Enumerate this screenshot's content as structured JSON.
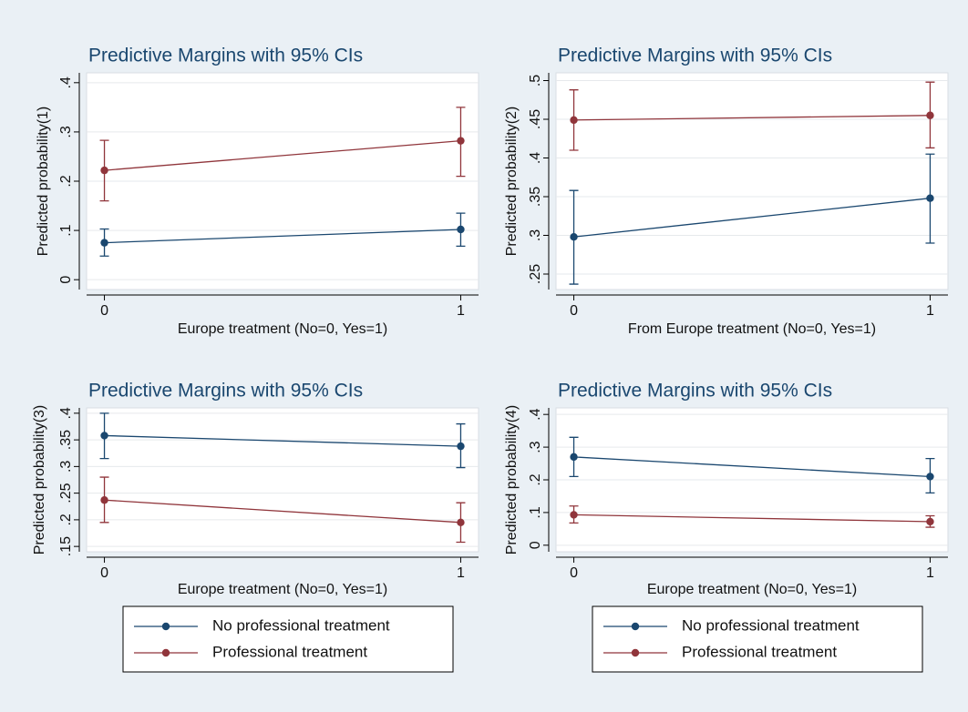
{
  "chart_data": [
    {
      "type": "line",
      "title": "Predictive Margins with 95% CIs",
      "y_label": "Predicted probability(1)",
      "x_label": "Europe treatment (No=0, Yes=1)",
      "x": [
        0,
        1
      ],
      "xlim": [
        -0.05,
        1.05
      ],
      "xticks": [
        0,
        1
      ],
      "ylim": [
        -0.02,
        0.42
      ],
      "yticks": [
        0,
        {
          "value": 0.1,
          "label": ".1"
        },
        {
          "value": 0.2,
          "label": ".2"
        },
        {
          "value": 0.3,
          "label": ".3"
        },
        {
          "value": 0.4,
          "label": ".4"
        }
      ],
      "grid": true,
      "series": [
        {
          "color": "#1a476f",
          "values": [
            0.075,
            0.102
          ],
          "ci_low": [
            0.048,
            0.068
          ],
          "ci_high": [
            0.103,
            0.135
          ]
        },
        {
          "color": "#90353b",
          "values": [
            0.222,
            0.282
          ],
          "ci_low": [
            0.16,
            0.21
          ],
          "ci_high": [
            0.283,
            0.35
          ]
        }
      ]
    },
    {
      "type": "line",
      "title": "Predictive Margins with 95% CIs",
      "y_label": "Predicted probability(2)",
      "x_label": "From Europe treatment (No=0, Yes=1)",
      "x": [
        0,
        1
      ],
      "xlim": [
        -0.05,
        1.05
      ],
      "xticks": [
        0,
        1
      ],
      "ylim": [
        0.23,
        0.51
      ],
      "yticks": [
        {
          "value": 0.25,
          "label": ".25"
        },
        {
          "value": 0.3,
          "label": ".3"
        },
        {
          "value": 0.35,
          "label": ".35"
        },
        {
          "value": 0.4,
          "label": ".4"
        },
        {
          "value": 0.45,
          "label": ".45"
        },
        {
          "value": 0.5,
          "label": ".5"
        }
      ],
      "grid": true,
      "series": [
        {
          "color": "#1a476f",
          "values": [
            0.298,
            0.348
          ],
          "ci_low": [
            0.237,
            0.29
          ],
          "ci_high": [
            0.358,
            0.405
          ]
        },
        {
          "color": "#90353b",
          "values": [
            0.449,
            0.455
          ],
          "ci_low": [
            0.41,
            0.413
          ],
          "ci_high": [
            0.488,
            0.498
          ]
        }
      ]
    },
    {
      "type": "line",
      "title": "Predictive Margins with 95% CIs",
      "y_label": "Predicted probability(3)",
      "x_label": "Europe treatment (No=0, Yes=1)",
      "x": [
        0,
        1
      ],
      "xlim": [
        -0.05,
        1.05
      ],
      "xticks": [
        0,
        1
      ],
      "ylim": [
        0.14,
        0.41
      ],
      "yticks": [
        {
          "value": 0.15,
          "label": ".15"
        },
        {
          "value": 0.2,
          "label": ".2"
        },
        {
          "value": 0.25,
          "label": ".25"
        },
        {
          "value": 0.3,
          "label": ".3"
        },
        {
          "value": 0.35,
          "label": ".35"
        },
        {
          "value": 0.4,
          "label": ".4"
        }
      ],
      "grid": true,
      "legend": "bottom",
      "series": [
        {
          "name": "No professional treatment",
          "color": "#1a476f",
          "values": [
            0.358,
            0.338
          ],
          "ci_low": [
            0.315,
            0.298
          ],
          "ci_high": [
            0.4,
            0.38
          ]
        },
        {
          "name": "Professional treatment",
          "color": "#90353b",
          "values": [
            0.237,
            0.195
          ],
          "ci_low": [
            0.195,
            0.158
          ],
          "ci_high": [
            0.28,
            0.232
          ]
        }
      ]
    },
    {
      "type": "line",
      "title": "Predictive Margins with 95% CIs",
      "y_label": "Predicted probability(4)",
      "x_label": "Europe treatment (No=0, Yes=1)",
      "x": [
        0,
        1
      ],
      "xlim": [
        -0.05,
        1.05
      ],
      "xticks": [
        0,
        1
      ],
      "ylim": [
        -0.02,
        0.42
      ],
      "yticks": [
        0,
        {
          "value": 0.1,
          "label": ".1"
        },
        {
          "value": 0.2,
          "label": ".2"
        },
        {
          "value": 0.3,
          "label": ".3"
        },
        {
          "value": 0.4,
          "label": ".4"
        }
      ],
      "grid": true,
      "legend": "bottom",
      "series": [
        {
          "name": "No professional treatment",
          "color": "#1a476f",
          "values": [
            0.27,
            0.21
          ],
          "ci_low": [
            0.21,
            0.16
          ],
          "ci_high": [
            0.33,
            0.265
          ]
        },
        {
          "name": "Professional treatment",
          "color": "#90353b",
          "values": [
            0.093,
            0.072
          ],
          "ci_low": [
            0.068,
            0.055
          ],
          "ci_high": [
            0.12,
            0.09
          ]
        }
      ]
    }
  ]
}
